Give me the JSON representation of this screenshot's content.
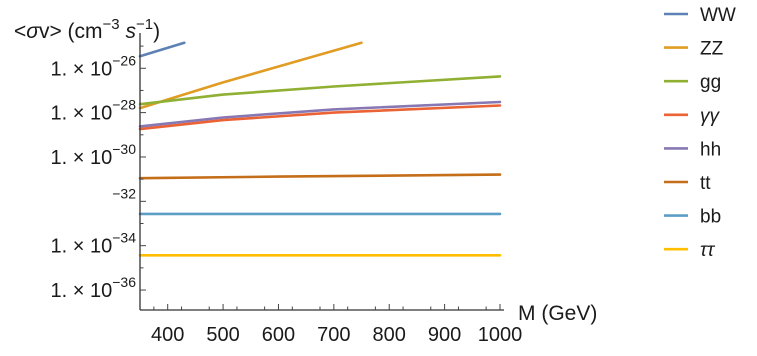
{
  "chart_data": {
    "type": "line",
    "ylabel": "<σv> (cm^-3 s^-1)",
    "xlabel": "M (GeV)",
    "x_ticks": [
      400,
      500,
      600,
      700,
      800,
      900,
      1000
    ],
    "xlim": [
      350,
      1000
    ],
    "y_scale": "log",
    "y_ticks": [
      {
        "value": 1e-26,
        "mantissa": "1. ×",
        "base": "10",
        "exp": "−26"
      },
      {
        "value": 1e-28,
        "mantissa": "1. ×",
        "base": "10",
        "exp": "−28"
      },
      {
        "value": 1e-30,
        "mantissa": "1. ×",
        "base": "10",
        "exp": "−30"
      },
      {
        "value": 1e-32,
        "mantissa": "",
        "base": "",
        "exp": "−32"
      },
      {
        "value": 1e-34,
        "mantissa": "1. ×",
        "base": "10",
        "exp": "−34"
      },
      {
        "value": 1e-36,
        "mantissa": "1. ×",
        "base": "10",
        "exp": "−36"
      }
    ],
    "ylim": [
      1e-36,
      1e-24
    ],
    "grid": false,
    "legend_position": "right",
    "series": [
      {
        "name": "WW",
        "color": "#5e81b5",
        "x": [
          350,
          430
        ],
        "y": [
          3.5e-26,
          1.4e-25
        ]
      },
      {
        "name": "ZZ",
        "color": "#e19c24",
        "x": [
          350,
          500,
          600,
          750
        ],
        "y": [
          1.6e-28,
          2.3e-27,
          1.2e-26,
          1.4e-25
        ]
      },
      {
        "name": "gg",
        "color": "#8fb032",
        "x": [
          350,
          500,
          700,
          1000
        ],
        "y": [
          2.4e-28,
          6.5e-28,
          1.5e-27,
          4.3e-27
        ]
      },
      {
        "name": "γγ",
        "color": "#eb6235",
        "x": [
          350,
          500,
          700,
          1000
        ],
        "y": [
          1.8e-29,
          4.6e-29,
          1e-28,
          2.1e-28
        ]
      },
      {
        "name": "hh",
        "color": "#8778b3",
        "x": [
          350,
          500,
          700,
          1000
        ],
        "y": [
          2.4e-29,
          6e-29,
          1.4e-28,
          3e-28
        ]
      },
      {
        "name": "tt",
        "color": "#c56e1a",
        "x": [
          350,
          600,
          1000
        ],
        "y": [
          1.1e-31,
          1.3e-31,
          1.6e-31
        ]
      },
      {
        "name": "bb",
        "color": "#5d9ec7",
        "x": [
          350,
          1000
        ],
        "y": [
          2.7e-33,
          2.7e-33
        ]
      },
      {
        "name": "ττ",
        "color": "#ffbf00",
        "x": [
          350,
          1000
        ],
        "y": [
          3.7e-35,
          3.7e-35
        ]
      }
    ]
  }
}
